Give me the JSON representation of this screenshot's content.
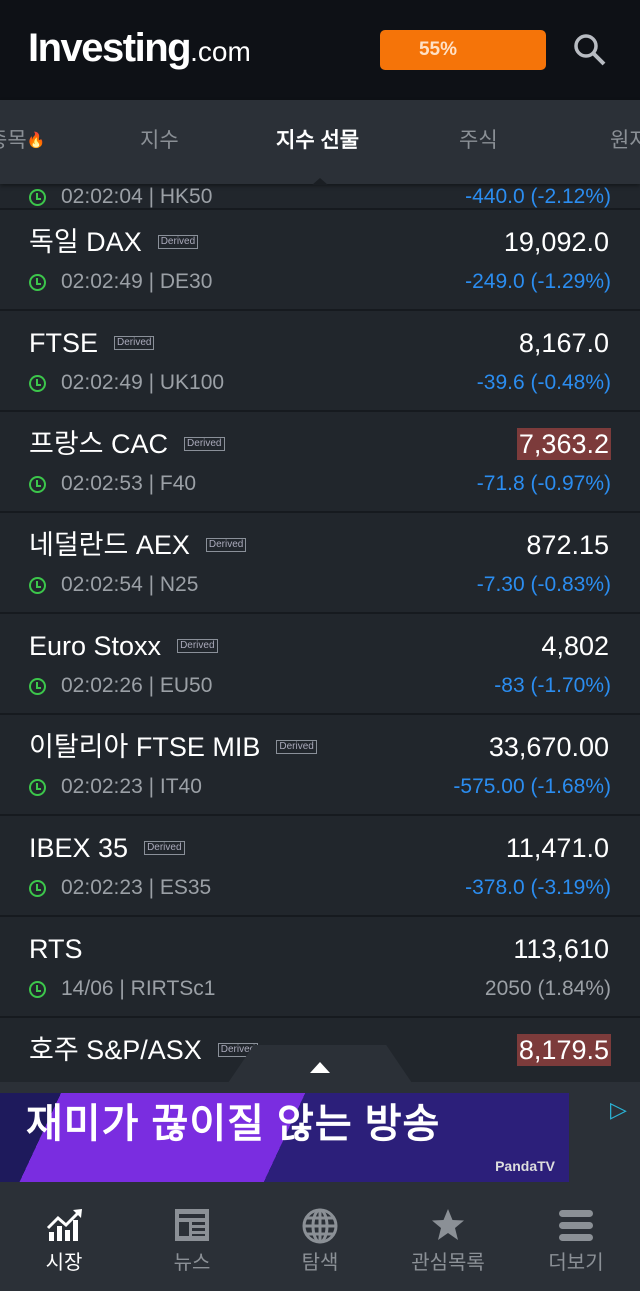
{
  "header": {
    "logo": "Investing",
    "logo_suffix": ".com",
    "promo": "55%",
    "promo_color": "#f57409",
    "search_icon": "search-icon"
  },
  "tabs": [
    {
      "label": "종목",
      "icon": "fire-icon"
    },
    {
      "label": "지수"
    },
    {
      "label": "지수 선물",
      "active": true
    },
    {
      "label": "주식"
    },
    {
      "label": "원자"
    }
  ],
  "partial_row": {
    "meta": "02:02:04 | HK50",
    "change": "-440.0 (-2.12%)"
  },
  "rows": [
    {
      "name": "독일 DAX",
      "badge": "Derived",
      "last": "19,092.0",
      "time": "02:02:49",
      "symbol": "DE30",
      "meta": "02:02:49 | DE30",
      "change": "-249.0 (-1.29%)"
    },
    {
      "name": "FTSE",
      "badge": "Derived",
      "last": "8,167.0",
      "meta": "02:02:49 | UK100",
      "change": "-39.6 (-0.48%)"
    },
    {
      "name": "프랑스 CAC",
      "badge": "Derived",
      "last": "7,363.2",
      "highlight": true,
      "meta": "02:02:53 | F40",
      "change": "-71.8 (-0.97%)"
    },
    {
      "name": "네덜란드 AEX",
      "badge": "Derived",
      "last": "872.15",
      "meta": "02:02:54 | N25",
      "change": "-7.30 (-0.83%)"
    },
    {
      "name": "Euro Stoxx",
      "badge": "Derived",
      "last": "4,802",
      "meta": "02:02:26 | EU50",
      "change": "-83 (-1.70%)"
    },
    {
      "name": "이탈리아 FTSE MIB",
      "badge": "Derived",
      "last": "33,670.00",
      "meta": "02:02:23 | IT40",
      "change": "-575.00 (-1.68%)"
    },
    {
      "name": "IBEX 35",
      "badge": "Derived",
      "last": "11,471.0",
      "meta": "02:02:23 | ES35",
      "change": "-378.0 (-3.19%)"
    },
    {
      "name": "RTS",
      "badge": "",
      "last": "113,610",
      "meta": "14/06 | RIRTSc1",
      "change": "2050 (1.84%)",
      "neutral": true
    },
    {
      "name": "호주 S&P/ASX",
      "badge": "Derived",
      "last": "8,179.5",
      "highlight": true,
      "meta": "",
      "change": ""
    }
  ],
  "ad": {
    "text": "재미가 끊이질 않는 방송",
    "brand": "PandaTV"
  },
  "nav": [
    {
      "label": "시장",
      "icon": "chart-icon",
      "active": true
    },
    {
      "label": "뉴스",
      "icon": "news-icon"
    },
    {
      "label": "탐색",
      "icon": "globe-icon"
    },
    {
      "label": "관심목록",
      "icon": "star-icon"
    },
    {
      "label": "더보기",
      "icon": "menu-icon"
    }
  ],
  "colors": {
    "negative": "#2b8df0",
    "highlight": "#7c3b3b",
    "clock": "#3cc64b"
  }
}
